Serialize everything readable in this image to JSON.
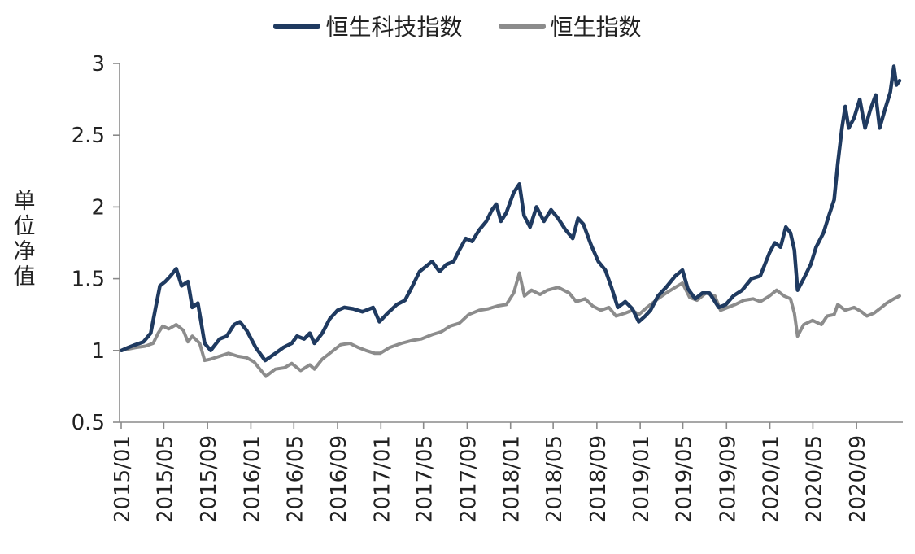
{
  "chart_data": {
    "type": "line",
    "title": "",
    "xlabel": "",
    "ylabel": "单位净值",
    "ylim": [
      0.5,
      3
    ],
    "yticks": [
      "0.5",
      "1",
      "1.5",
      "2",
      "2.5",
      "3"
    ],
    "x_range": [
      "2015/01",
      "2020/12"
    ],
    "xticks": [
      "2015/01",
      "2015/05",
      "2015/09",
      "2016/01",
      "2016/05",
      "2016/09",
      "2017/01",
      "2017/05",
      "2017/09",
      "2018/01",
      "2018/05",
      "2018/09",
      "2019/01",
      "2019/05",
      "2019/09",
      "2020/01",
      "2020/05",
      "2020/09"
    ],
    "legend": "top-center",
    "grid": false,
    "series": [
      {
        "name": "恒生科技指数",
        "color": "#1f3a60",
        "points": [
          [
            "2015/01/02",
            1.0
          ],
          [
            "2015/01/20",
            1.02
          ],
          [
            "2015/02/10",
            1.04
          ],
          [
            "2015/03/05",
            1.06
          ],
          [
            "2015/03/25",
            1.12
          ],
          [
            "2015/04/08",
            1.3
          ],
          [
            "2015/04/20",
            1.45
          ],
          [
            "2015/05/05",
            1.48
          ],
          [
            "2015/05/20",
            1.52
          ],
          [
            "2015/06/05",
            1.57
          ],
          [
            "2015/06/20",
            1.45
          ],
          [
            "2015/07/08",
            1.48
          ],
          [
            "2015/07/20",
            1.3
          ],
          [
            "2015/08/05",
            1.33
          ],
          [
            "2015/08/24",
            1.05
          ],
          [
            "2015/09/10",
            1.0
          ],
          [
            "2015/10/05",
            1.08
          ],
          [
            "2015/10/25",
            1.1
          ],
          [
            "2015/11/15",
            1.18
          ],
          [
            "2015/12/01",
            1.2
          ],
          [
            "2015/12/20",
            1.14
          ],
          [
            "2016/01/15",
            1.02
          ],
          [
            "2016/02/10",
            0.93
          ],
          [
            "2016/03/10",
            0.98
          ],
          [
            "2016/04/01",
            1.02
          ],
          [
            "2016/04/25",
            1.05
          ],
          [
            "2016/05/10",
            1.1
          ],
          [
            "2016/05/30",
            1.08
          ],
          [
            "2016/06/15",
            1.12
          ],
          [
            "2016/06/28",
            1.05
          ],
          [
            "2016/07/20",
            1.12
          ],
          [
            "2016/08/10",
            1.22
          ],
          [
            "2016/09/01",
            1.28
          ],
          [
            "2016/09/20",
            1.3
          ],
          [
            "2016/10/15",
            1.29
          ],
          [
            "2016/11/10",
            1.27
          ],
          [
            "2016/12/10",
            1.3
          ],
          [
            "2016/12/28",
            1.2
          ],
          [
            "2017/01/20",
            1.26
          ],
          [
            "2017/02/15",
            1.32
          ],
          [
            "2017/03/10",
            1.35
          ],
          [
            "2017/03/31",
            1.45
          ],
          [
            "2017/04/20",
            1.55
          ],
          [
            "2017/05/05",
            1.58
          ],
          [
            "2017/05/25",
            1.62
          ],
          [
            "2017/06/15",
            1.55
          ],
          [
            "2017/07/05",
            1.6
          ],
          [
            "2017/07/25",
            1.62
          ],
          [
            "2017/08/10",
            1.7
          ],
          [
            "2017/08/28",
            1.78
          ],
          [
            "2017/09/15",
            1.76
          ],
          [
            "2017/10/05",
            1.84
          ],
          [
            "2017/10/25",
            1.9
          ],
          [
            "2017/11/10",
            1.98
          ],
          [
            "2017/11/22",
            2.02
          ],
          [
            "2017/12/05",
            1.9
          ],
          [
            "2017/12/20",
            1.96
          ],
          [
            "2018/01/10",
            2.1
          ],
          [
            "2018/01/26",
            2.16
          ],
          [
            "2018/02/08",
            1.94
          ],
          [
            "2018/02/25",
            1.86
          ],
          [
            "2018/03/15",
            2.0
          ],
          [
            "2018/04/05",
            1.9
          ],
          [
            "2018/04/25",
            1.98
          ],
          [
            "2018/05/15",
            1.92
          ],
          [
            "2018/06/05",
            1.84
          ],
          [
            "2018/06/25",
            1.78
          ],
          [
            "2018/07/10",
            1.92
          ],
          [
            "2018/07/25",
            1.88
          ],
          [
            "2018/08/15",
            1.74
          ],
          [
            "2018/09/05",
            1.62
          ],
          [
            "2018/09/25",
            1.56
          ],
          [
            "2018/10/12",
            1.44
          ],
          [
            "2018/10/30",
            1.3
          ],
          [
            "2018/11/20",
            1.34
          ],
          [
            "2018/12/10",
            1.29
          ],
          [
            "2018/12/28",
            1.2
          ],
          [
            "2019/01/15",
            1.24
          ],
          [
            "2019/01/30",
            1.28
          ],
          [
            "2019/02/20",
            1.38
          ],
          [
            "2019/03/15",
            1.44
          ],
          [
            "2019/04/10",
            1.52
          ],
          [
            "2019/04/30",
            1.56
          ],
          [
            "2019/05/15",
            1.43
          ],
          [
            "2019/06/05",
            1.36
          ],
          [
            "2019/06/25",
            1.4
          ],
          [
            "2019/07/15",
            1.4
          ],
          [
            "2019/08/10",
            1.3
          ],
          [
            "2019/08/30",
            1.32
          ],
          [
            "2019/09/20",
            1.38
          ],
          [
            "2019/10/15",
            1.42
          ],
          [
            "2019/11/10",
            1.5
          ],
          [
            "2019/12/05",
            1.52
          ],
          [
            "2019/12/31",
            1.68
          ],
          [
            "2020/01/15",
            1.75
          ],
          [
            "2020/01/31",
            1.72
          ],
          [
            "2020/02/15",
            1.86
          ],
          [
            "2020/02/28",
            1.82
          ],
          [
            "2020/03/10",
            1.7
          ],
          [
            "2020/03/19",
            1.42
          ],
          [
            "2020/04/05",
            1.5
          ],
          [
            "2020/04/25",
            1.6
          ],
          [
            "2020/05/10",
            1.72
          ],
          [
            "2020/05/31",
            1.82
          ],
          [
            "2020/06/15",
            1.94
          ],
          [
            "2020/06/30",
            2.05
          ],
          [
            "2020/07/10",
            2.3
          ],
          [
            "2020/07/22",
            2.55
          ],
          [
            "2020/07/31",
            2.7
          ],
          [
            "2020/08/10",
            2.55
          ],
          [
            "2020/08/25",
            2.62
          ],
          [
            "2020/09/10",
            2.75
          ],
          [
            "2020/09/25",
            2.55
          ],
          [
            "2020/10/10",
            2.68
          ],
          [
            "2020/10/25",
            2.78
          ],
          [
            "2020/11/05",
            2.55
          ],
          [
            "2020/11/20",
            2.68
          ],
          [
            "2020/12/05",
            2.8
          ],
          [
            "2020/12/15",
            2.98
          ],
          [
            "2020/12/22",
            2.85
          ],
          [
            "2020/12/31",
            2.88
          ]
        ]
      },
      {
        "name": "恒生指数",
        "color": "#8c8c8c",
        "points": [
          [
            "2015/01/02",
            1.0
          ],
          [
            "2015/02/10",
            1.02
          ],
          [
            "2015/03/10",
            1.03
          ],
          [
            "2015/04/01",
            1.05
          ],
          [
            "2015/04/15",
            1.12
          ],
          [
            "2015/04/28",
            1.17
          ],
          [
            "2015/05/15",
            1.15
          ],
          [
            "2015/06/05",
            1.18
          ],
          [
            "2015/06/25",
            1.14
          ],
          [
            "2015/07/08",
            1.06
          ],
          [
            "2015/07/20",
            1.1
          ],
          [
            "2015/08/10",
            1.05
          ],
          [
            "2015/08/24",
            0.93
          ],
          [
            "2015/09/10",
            0.94
          ],
          [
            "2015/10/05",
            0.96
          ],
          [
            "2015/10/30",
            0.98
          ],
          [
            "2015/11/25",
            0.96
          ],
          [
            "2015/12/20",
            0.95
          ],
          [
            "2016/01/10",
            0.92
          ],
          [
            "2016/02/12",
            0.82
          ],
          [
            "2016/03/10",
            0.87
          ],
          [
            "2016/04/05",
            0.88
          ],
          [
            "2016/04/25",
            0.91
          ],
          [
            "2016/05/20",
            0.86
          ],
          [
            "2016/06/15",
            0.9
          ],
          [
            "2016/06/28",
            0.87
          ],
          [
            "2016/07/20",
            0.94
          ],
          [
            "2016/08/15",
            0.99
          ],
          [
            "2016/09/10",
            1.04
          ],
          [
            "2016/10/05",
            1.05
          ],
          [
            "2016/10/30",
            1.02
          ],
          [
            "2016/11/20",
            1.0
          ],
          [
            "2016/12/15",
            0.98
          ],
          [
            "2016/12/30",
            0.98
          ],
          [
            "2017/01/25",
            1.02
          ],
          [
            "2017/02/28",
            1.05
          ],
          [
            "2017/03/30",
            1.07
          ],
          [
            "2017/04/25",
            1.08
          ],
          [
            "2017/05/25",
            1.11
          ],
          [
            "2017/06/20",
            1.13
          ],
          [
            "2017/07/15",
            1.17
          ],
          [
            "2017/08/10",
            1.19
          ],
          [
            "2017/09/05",
            1.25
          ],
          [
            "2017/10/05",
            1.28
          ],
          [
            "2017/10/30",
            1.29
          ],
          [
            "2017/11/25",
            1.31
          ],
          [
            "2017/12/20",
            1.32
          ],
          [
            "2018/01/10",
            1.4
          ],
          [
            "2018/01/26",
            1.54
          ],
          [
            "2018/02/09",
            1.38
          ],
          [
            "2018/03/01",
            1.42
          ],
          [
            "2018/03/25",
            1.39
          ],
          [
            "2018/04/15",
            1.42
          ],
          [
            "2018/05/15",
            1.44
          ],
          [
            "2018/06/15",
            1.4
          ],
          [
            "2018/07/05",
            1.34
          ],
          [
            "2018/07/30",
            1.36
          ],
          [
            "2018/08/20",
            1.31
          ],
          [
            "2018/09/12",
            1.28
          ],
          [
            "2018/10/05",
            1.3
          ],
          [
            "2018/10/25",
            1.24
          ],
          [
            "2018/11/20",
            1.26
          ],
          [
            "2018/12/10",
            1.28
          ],
          [
            "2018/12/28",
            1.25
          ],
          [
            "2019/01/20",
            1.3
          ],
          [
            "2019/02/20",
            1.36
          ],
          [
            "2019/03/15",
            1.4
          ],
          [
            "2019/04/10",
            1.44
          ],
          [
            "2019/04/30",
            1.47
          ],
          [
            "2019/05/20",
            1.37
          ],
          [
            "2019/06/10",
            1.35
          ],
          [
            "2019/07/05",
            1.4
          ],
          [
            "2019/07/30",
            1.38
          ],
          [
            "2019/08/15",
            1.28
          ],
          [
            "2019/09/05",
            1.3
          ],
          [
            "2019/09/25",
            1.32
          ],
          [
            "2019/10/20",
            1.35
          ],
          [
            "2019/11/15",
            1.36
          ],
          [
            "2019/12/05",
            1.34
          ],
          [
            "2019/12/31",
            1.38
          ],
          [
            "2020/01/20",
            1.42
          ],
          [
            "2020/02/10",
            1.38
          ],
          [
            "2020/02/28",
            1.36
          ],
          [
            "2020/03/10",
            1.26
          ],
          [
            "2020/03/19",
            1.1
          ],
          [
            "2020/04/05",
            1.18
          ],
          [
            "2020/04/30",
            1.21
          ],
          [
            "2020/05/25",
            1.18
          ],
          [
            "2020/06/10",
            1.24
          ],
          [
            "2020/06/30",
            1.25
          ],
          [
            "2020/07/10",
            1.32
          ],
          [
            "2020/07/31",
            1.28
          ],
          [
            "2020/08/25",
            1.3
          ],
          [
            "2020/09/15",
            1.27
          ],
          [
            "2020/09/30",
            1.24
          ],
          [
            "2020/10/20",
            1.26
          ],
          [
            "2020/11/10",
            1.3
          ],
          [
            "2020/11/25",
            1.33
          ],
          [
            "2020/12/15",
            1.36
          ],
          [
            "2020/12/31",
            1.38
          ]
        ]
      }
    ]
  }
}
